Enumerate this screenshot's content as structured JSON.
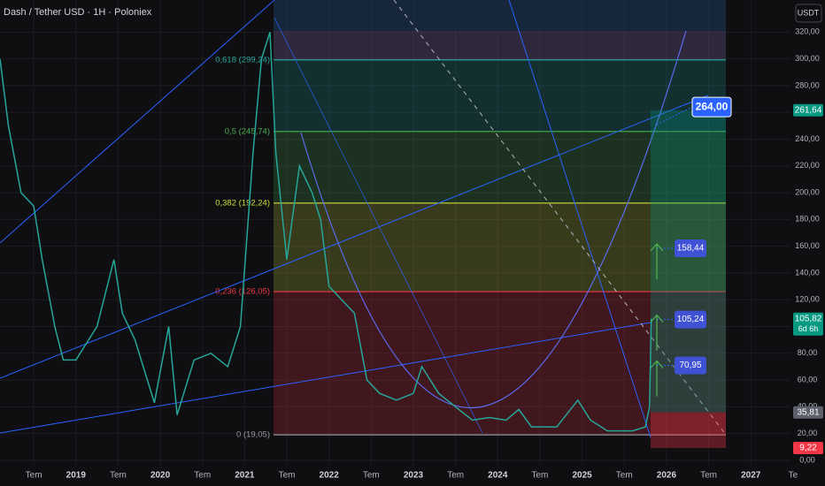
{
  "chart_data": {
    "type": "line",
    "title": "Dash / Tether USD · 1H · Poloniex",
    "currency": "USDT",
    "series": [
      {
        "name": "DASHUSDT",
        "color": "#26a69a",
        "x": [
          2018.1,
          2018.2,
          2018.35,
          2018.5,
          2018.6,
          2018.75,
          2018.85,
          2019.0,
          2019.25,
          2019.45,
          2019.55,
          2019.7,
          2019.93,
          2020.1,
          2020.2,
          2020.4,
          2020.6,
          2020.8,
          2020.95,
          2021.1,
          2021.2,
          2021.3,
          2021.37,
          2021.5,
          2021.65,
          2021.8,
          2021.9,
          2022.0,
          2022.3,
          2022.45,
          2022.6,
          2022.8,
          2023.0,
          2023.1,
          2023.3,
          2023.5,
          2023.7,
          2023.9,
          2024.1,
          2024.25,
          2024.4,
          2024.7,
          2024.95,
          2025.1,
          2025.3,
          2025.6,
          2025.75,
          2025.8,
          2025.82
        ],
        "values": [
          300,
          250,
          200,
          190,
          150,
          100,
          75,
          75,
          100,
          150,
          110,
          90,
          43,
          100,
          34,
          75,
          80,
          70,
          100,
          230,
          300,
          320,
          230,
          150,
          220,
          200,
          180,
          130,
          110,
          60,
          50,
          45,
          50,
          70,
          50,
          40,
          30,
          32,
          30,
          38,
          25,
          25,
          45,
          30,
          22,
          22,
          25,
          40,
          105.82
        ]
      }
    ],
    "xlim": [
      2018.1,
      2027.47
    ],
    "xticks": [
      {
        "value": 2018.5,
        "label": "Tem"
      },
      2019,
      {
        "value": 2019.5,
        "label": "Tem"
      },
      2020,
      {
        "value": 2020.5,
        "label": "Tem"
      },
      2021,
      {
        "value": 2021.5,
        "label": "Tem"
      },
      2022,
      {
        "value": 2022.5,
        "label": "Tem"
      },
      2023,
      {
        "value": 2023.5,
        "label": "Tem"
      },
      2024,
      {
        "value": 2024.5,
        "label": "Tem"
      },
      2025,
      {
        "value": 2025.5,
        "label": "Tem"
      },
      2026,
      {
        "value": 2026.5,
        "label": "Tem"
      },
      2027,
      {
        "value": 2027.5,
        "label": "Te"
      }
    ],
    "ylim": [
      -4,
      344
    ],
    "yticks": [
      {
        "value": 0,
        "label": "0,00"
      },
      {
        "value": 20,
        "label": "20,00"
      },
      {
        "value": 40,
        "label": "40,00"
      },
      {
        "value": 60,
        "label": "60,00"
      },
      {
        "value": 80,
        "label": "80,00"
      },
      {
        "value": 100,
        "label": "100,00"
      },
      {
        "value": 120,
        "label": "120,00"
      },
      {
        "value": 140,
        "label": "140,00"
      },
      {
        "value": 160,
        "label": "160,00"
      },
      {
        "value": 180,
        "label": "180,00"
      },
      {
        "value": 200,
        "label": "200,00"
      },
      {
        "value": 220,
        "label": "220,00"
      },
      {
        "value": 240,
        "label": "240,00"
      },
      {
        "value": 260,
        "label": "260,00"
      },
      {
        "value": 280,
        "label": "280,00"
      },
      {
        "value": 300,
        "label": "300,00"
      },
      {
        "value": 320,
        "label": "320,00"
      }
    ],
    "grid": true,
    "fib_levels": [
      {
        "value": 299.24,
        "label": "0,618 (299,24)",
        "color": "#26a69a"
      },
      {
        "value": 245.74,
        "label": "0,5 (245,74)",
        "color": "#4caf50"
      },
      {
        "value": 192.24,
        "label": "0,382 (192,24)",
        "color": "#cddc39"
      },
      {
        "value": 126.05,
        "label": "0,236 (126,05)",
        "color": "#f23645"
      },
      {
        "value": 19.05,
        "label": "0 (19,05)",
        "color": "#9598a1"
      }
    ],
    "targets": [
      {
        "value": 264.0,
        "label": "264,00"
      },
      {
        "value": 158.44,
        "label": "158,44"
      },
      {
        "value": 105.24,
        "label": "105,24"
      },
      {
        "value": 70.95,
        "label": "70,95"
      }
    ],
    "price_tags": [
      {
        "value": 261.64,
        "label": "261,64",
        "color": "#089981"
      },
      {
        "value": 105.82,
        "label": "105,82",
        "color": "#089981"
      },
      {
        "value": 35.81,
        "label": "35,81",
        "color": "#5d606b"
      },
      {
        "value": 9.22,
        "label": "9,22",
        "color": "#f23645"
      }
    ],
    "countdown": "6d 6h"
  }
}
